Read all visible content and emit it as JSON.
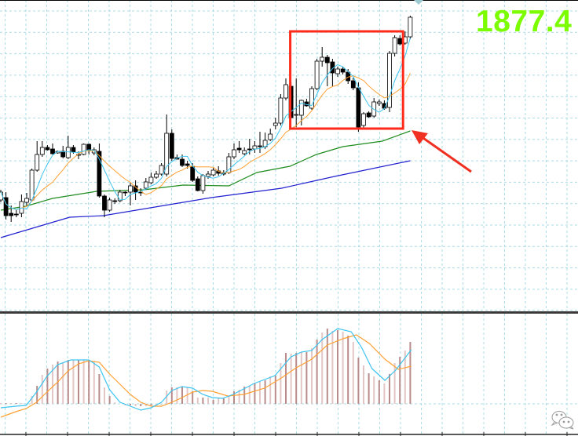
{
  "header": {
    "current_price": "1877.4"
  },
  "colors": {
    "grid": "#a9dce6",
    "bull_body": "#ffffff",
    "bear_body": "#000000",
    "candle_outline": "#000000",
    "ma_fast": "#3cc4f0",
    "ma_slow": "#ffa032",
    "ma_green": "#1e8c1e",
    "ma_blue": "#2020d0",
    "price_label": "#7cfc00",
    "highlight_box": "#ff2a1a",
    "arrow": "#f03020",
    "hist_a": "#e2c6c6",
    "hist_b": "#b98b8b",
    "macd_line": "#3cc4f0",
    "signal_line": "#ffa032"
  },
  "chart_data": [
    {
      "type": "candlestick",
      "title": "",
      "last_price": 1877.4,
      "ylim": [
        1840.0,
        1879.6
      ],
      "grid": true,
      "ohlc": [
        [
          1854.1,
          1855.4,
          1853.8,
          1855.1
        ],
        [
          1854.4,
          1855.1,
          1851.6,
          1852.1
        ],
        [
          1852.4,
          1853.4,
          1851.3,
          1852.1
        ],
        [
          1852.3,
          1852.8,
          1851.9,
          1852.2
        ],
        [
          1852.4,
          1854.8,
          1851.9,
          1853.9
        ],
        [
          1853.8,
          1855.0,
          1853.4,
          1854.3
        ],
        [
          1854.1,
          1858.1,
          1853.9,
          1857.9
        ],
        [
          1857.9,
          1861.6,
          1857.7,
          1859.9
        ],
        [
          1859.9,
          1861.6,
          1859.6,
          1860.8
        ],
        [
          1860.8,
          1861.1,
          1860.4,
          1860.5
        ],
        [
          1860.6,
          1861.3,
          1859.9,
          1860.0
        ],
        [
          1860.1,
          1860.4,
          1860.0,
          1860.3
        ],
        [
          1860.3,
          1861.0,
          1859.4,
          1859.6
        ],
        [
          1859.5,
          1862.3,
          1859.3,
          1860.8
        ],
        [
          1860.8,
          1861.1,
          1860.0,
          1860.2
        ],
        [
          1859.8,
          1860.3,
          1859.3,
          1859.9
        ],
        [
          1859.9,
          1861.3,
          1859.8,
          1861.2
        ],
        [
          1861.2,
          1861.3,
          1859.9,
          1860.4
        ],
        [
          1860.1,
          1860.8,
          1859.8,
          1860.5
        ],
        [
          1860.3,
          1861.3,
          1854.4,
          1854.6
        ],
        [
          1854.6,
          1854.8,
          1851.9,
          1852.8
        ],
        [
          1852.8,
          1854.4,
          1852.6,
          1854.1
        ],
        [
          1854.0,
          1854.3,
          1853.6,
          1853.9
        ],
        [
          1854.0,
          1855.4,
          1853.8,
          1855.1
        ],
        [
          1855.1,
          1855.2,
          1854.6,
          1855.0
        ],
        [
          1855.1,
          1856.3,
          1853.4,
          1855.9
        ],
        [
          1855.9,
          1856.6,
          1854.1,
          1855.1
        ],
        [
          1855.1,
          1855.6,
          1854.6,
          1855.0
        ],
        [
          1855.6,
          1856.9,
          1855.4,
          1856.4
        ],
        [
          1856.3,
          1857.6,
          1856.1,
          1857.0
        ],
        [
          1857.0,
          1857.8,
          1856.8,
          1857.4
        ],
        [
          1857.4,
          1858.8,
          1857.2,
          1858.5
        ],
        [
          1857.4,
          1865.0,
          1857.1,
          1862.6
        ],
        [
          1862.6,
          1863.1,
          1859.1,
          1859.4
        ],
        [
          1859.5,
          1859.9,
          1859.3,
          1859.3
        ],
        [
          1859.3,
          1859.9,
          1858.3,
          1858.5
        ],
        [
          1858.7,
          1859.1,
          1858.1,
          1858.5
        ],
        [
          1858.4,
          1858.8,
          1856.4,
          1856.6
        ],
        [
          1856.8,
          1857.1,
          1855.2,
          1855.3
        ],
        [
          1855.3,
          1857.4,
          1854.9,
          1857.2
        ],
        [
          1857.1,
          1857.8,
          1856.8,
          1857.4
        ],
        [
          1857.3,
          1858.2,
          1857.1,
          1857.9
        ],
        [
          1857.8,
          1858.4,
          1857.2,
          1857.5
        ],
        [
          1857.4,
          1857.9,
          1857.2,
          1857.5
        ],
        [
          1857.6,
          1860.1,
          1857.4,
          1859.6
        ],
        [
          1859.6,
          1861.3,
          1859.3,
          1860.5
        ],
        [
          1860.7,
          1861.6,
          1860.1,
          1860.5
        ],
        [
          1860.0,
          1860.8,
          1859.8,
          1860.4
        ],
        [
          1860.6,
          1861.9,
          1859.9,
          1860.5
        ],
        [
          1860.6,
          1861.6,
          1860.1,
          1861.0
        ],
        [
          1861.0,
          1862.8,
          1860.1,
          1860.9
        ],
        [
          1860.9,
          1862.7,
          1860.6,
          1861.7
        ],
        [
          1861.8,
          1863.2,
          1861.6,
          1862.5
        ],
        [
          1863.6,
          1864.6,
          1863.1,
          1863.9
        ],
        [
          1863.9,
          1867.6,
          1863.6,
          1867.1
        ],
        [
          1867.1,
          1869.6,
          1866.8,
          1868.8
        ],
        [
          1868.6,
          1869.1,
          1864.4,
          1864.6
        ],
        [
          1864.9,
          1869.6,
          1863.4,
          1865.0
        ],
        [
          1864.9,
          1866.9,
          1863.6,
          1866.8
        ],
        [
          1866.6,
          1867.0,
          1866.0,
          1866.1
        ],
        [
          1865.8,
          1868.6,
          1865.6,
          1868.3
        ],
        [
          1868.3,
          1872.1,
          1868.1,
          1871.8
        ],
        [
          1871.8,
          1873.6,
          1871.1,
          1872.3
        ],
        [
          1872.3,
          1872.6,
          1868.6,
          1871.6
        ],
        [
          1871.7,
          1872.1,
          1868.6,
          1870.3
        ],
        [
          1870.2,
          1871.1,
          1869.8,
          1870.8
        ],
        [
          1870.8,
          1871.1,
          1870.1,
          1870.4
        ],
        [
          1870.4,
          1870.8,
          1868.9,
          1869.3
        ],
        [
          1869.3,
          1869.7,
          1868.1,
          1868.4
        ],
        [
          1868.4,
          1869.1,
          1862.8,
          1863.4
        ],
        [
          1863.6,
          1865.3,
          1863.1,
          1865.1
        ],
        [
          1865.2,
          1865.4,
          1864.6,
          1864.7
        ],
        [
          1864.8,
          1867.1,
          1864.6,
          1866.6
        ],
        [
          1866.4,
          1866.9,
          1866.1,
          1866.6
        ],
        [
          1866.4,
          1866.8,
          1865.6,
          1865.8
        ],
        [
          1865.9,
          1873.1,
          1865.3,
          1872.8
        ],
        [
          1872.8,
          1875.1,
          1872.4,
          1874.8
        ],
        [
          1874.7,
          1875.1,
          1873.8,
          1874.0
        ],
        [
          1874.1,
          1875.6,
          1873.9,
          1874.9
        ],
        [
          1874.9,
          1877.6,
          1874.6,
          1877.4
        ]
      ],
      "ma_green": [
        [
          0,
          1852.8
        ],
        [
          4.8,
          1853.3
        ],
        [
          10,
          1854.3
        ],
        [
          18.5,
          1855.2
        ],
        [
          27.6,
          1855.4
        ],
        [
          35.2,
          1856.0
        ],
        [
          44,
          1855.9
        ],
        [
          49.4,
          1857.6
        ],
        [
          55.8,
          1858.4
        ],
        [
          60.9,
          1859.9
        ],
        [
          66,
          1860.9
        ],
        [
          73.6,
          1861.6
        ],
        [
          79,
          1862.9
        ]
      ],
      "ma_blue": [
        [
          0,
          1849.3
        ],
        [
          13.3,
          1851.9
        ],
        [
          19.8,
          1852.1
        ],
        [
          40.6,
          1854.4
        ],
        [
          54.2,
          1855.6
        ],
        [
          64.4,
          1857.1
        ],
        [
          79,
          1859.1
        ]
      ],
      "highlight_range": {
        "from_index": 56,
        "to_index": 77,
        "low": 1863.3,
        "high": 1875.5
      }
    },
    {
      "type": "bar+line",
      "title": "",
      "ylim": [
        -4.0,
        11.5
      ],
      "histogram": [
        0.1,
        0.1,
        0.1,
        0.1,
        0.1,
        0,
        1.0,
        2.3,
        3.7,
        4.5,
        5.0,
        5.4,
        5.3,
        5.6,
        5.6,
        5.6,
        5.6,
        5.5,
        5.4,
        3.8,
        2.1,
        1.0,
        0.2,
        0,
        -0.2,
        -0.2,
        -0.3,
        -0.3,
        -0.3,
        -0.2,
        -0.1,
        -0.05,
        1.7,
        2.1,
        2.1,
        2.2,
        2.1,
        1.6,
        0.8,
        0.8,
        0.8,
        0.5,
        0.7,
        0.7,
        1.0,
        1.6,
        1.8,
        2.2,
        2.3,
        2.6,
        2.8,
        3.0,
        3.5,
        3.6,
        5.2,
        6.5,
        6.4,
        6.5,
        6.6,
        6.6,
        7.1,
        8.2,
        9.1,
        9.6,
        9.3,
        9.4,
        9.2,
        8.7,
        7.9,
        5.9,
        4.9,
        3.9,
        3.5,
        3.0,
        2.6,
        3.8,
        5.2,
        6.0,
        6.8,
        7.9
      ],
      "fast_line": [
        [
          0,
          -0.5
        ],
        [
          2.9,
          -0.3
        ],
        [
          4.9,
          -0.2
        ],
        [
          6.9,
          1.5
        ],
        [
          8.9,
          3.5
        ],
        [
          11,
          5.0
        ],
        [
          13.5,
          5.6
        ],
        [
          17,
          5.6
        ],
        [
          19,
          4.7
        ],
        [
          21,
          1.8
        ],
        [
          23,
          0.2
        ],
        [
          25,
          -0.3
        ],
        [
          27,
          -0.8
        ],
        [
          29,
          -0.5
        ],
        [
          31,
          0.2
        ],
        [
          33,
          1.7
        ],
        [
          35,
          2.2
        ],
        [
          37,
          2.0
        ],
        [
          39,
          1.2
        ],
        [
          40.8,
          0.8
        ],
        [
          42.8,
          0.7
        ],
        [
          44.8,
          1.2
        ],
        [
          48.9,
          2.6
        ],
        [
          52.9,
          3.6
        ],
        [
          56,
          6.0
        ],
        [
          58,
          6.6
        ],
        [
          60,
          6.8
        ],
        [
          62,
          8.2
        ],
        [
          65,
          9.6
        ],
        [
          67.6,
          9.2
        ],
        [
          69.6,
          7.2
        ],
        [
          71.6,
          4.5
        ],
        [
          74.1,
          3.0
        ],
        [
          76.2,
          4.3
        ],
        [
          79.2,
          6.9
        ]
      ],
      "signal_line": [
        [
          0,
          -1.7
        ],
        [
          2.9,
          -1.0
        ],
        [
          4.9,
          -0.6
        ],
        [
          6.9,
          0.2
        ],
        [
          8.9,
          1.5
        ],
        [
          11,
          2.8
        ],
        [
          13,
          4.2
        ],
        [
          15,
          5.1
        ],
        [
          17,
          5.5
        ],
        [
          19,
          5.3
        ],
        [
          21,
          3.8
        ],
        [
          23,
          2.5
        ],
        [
          25,
          1.2
        ],
        [
          27,
          0.2
        ],
        [
          29,
          -0.3
        ],
        [
          31,
          -0.3
        ],
        [
          33,
          0.2
        ],
        [
          35,
          0.8
        ],
        [
          37,
          1.5
        ],
        [
          39,
          1.7
        ],
        [
          40.8,
          1.6
        ],
        [
          43.8,
          1.0
        ],
        [
          46.9,
          1.2
        ],
        [
          50.9,
          2.0
        ],
        [
          53.9,
          3.2
        ],
        [
          57,
          4.6
        ],
        [
          60,
          5.7
        ],
        [
          63,
          7.5
        ],
        [
          66,
          8.3
        ],
        [
          68.6,
          8.8
        ],
        [
          71.1,
          7.7
        ],
        [
          74.1,
          5.7
        ],
        [
          76.7,
          4.4
        ],
        [
          79.2,
          4.8
        ]
      ]
    }
  ]
}
